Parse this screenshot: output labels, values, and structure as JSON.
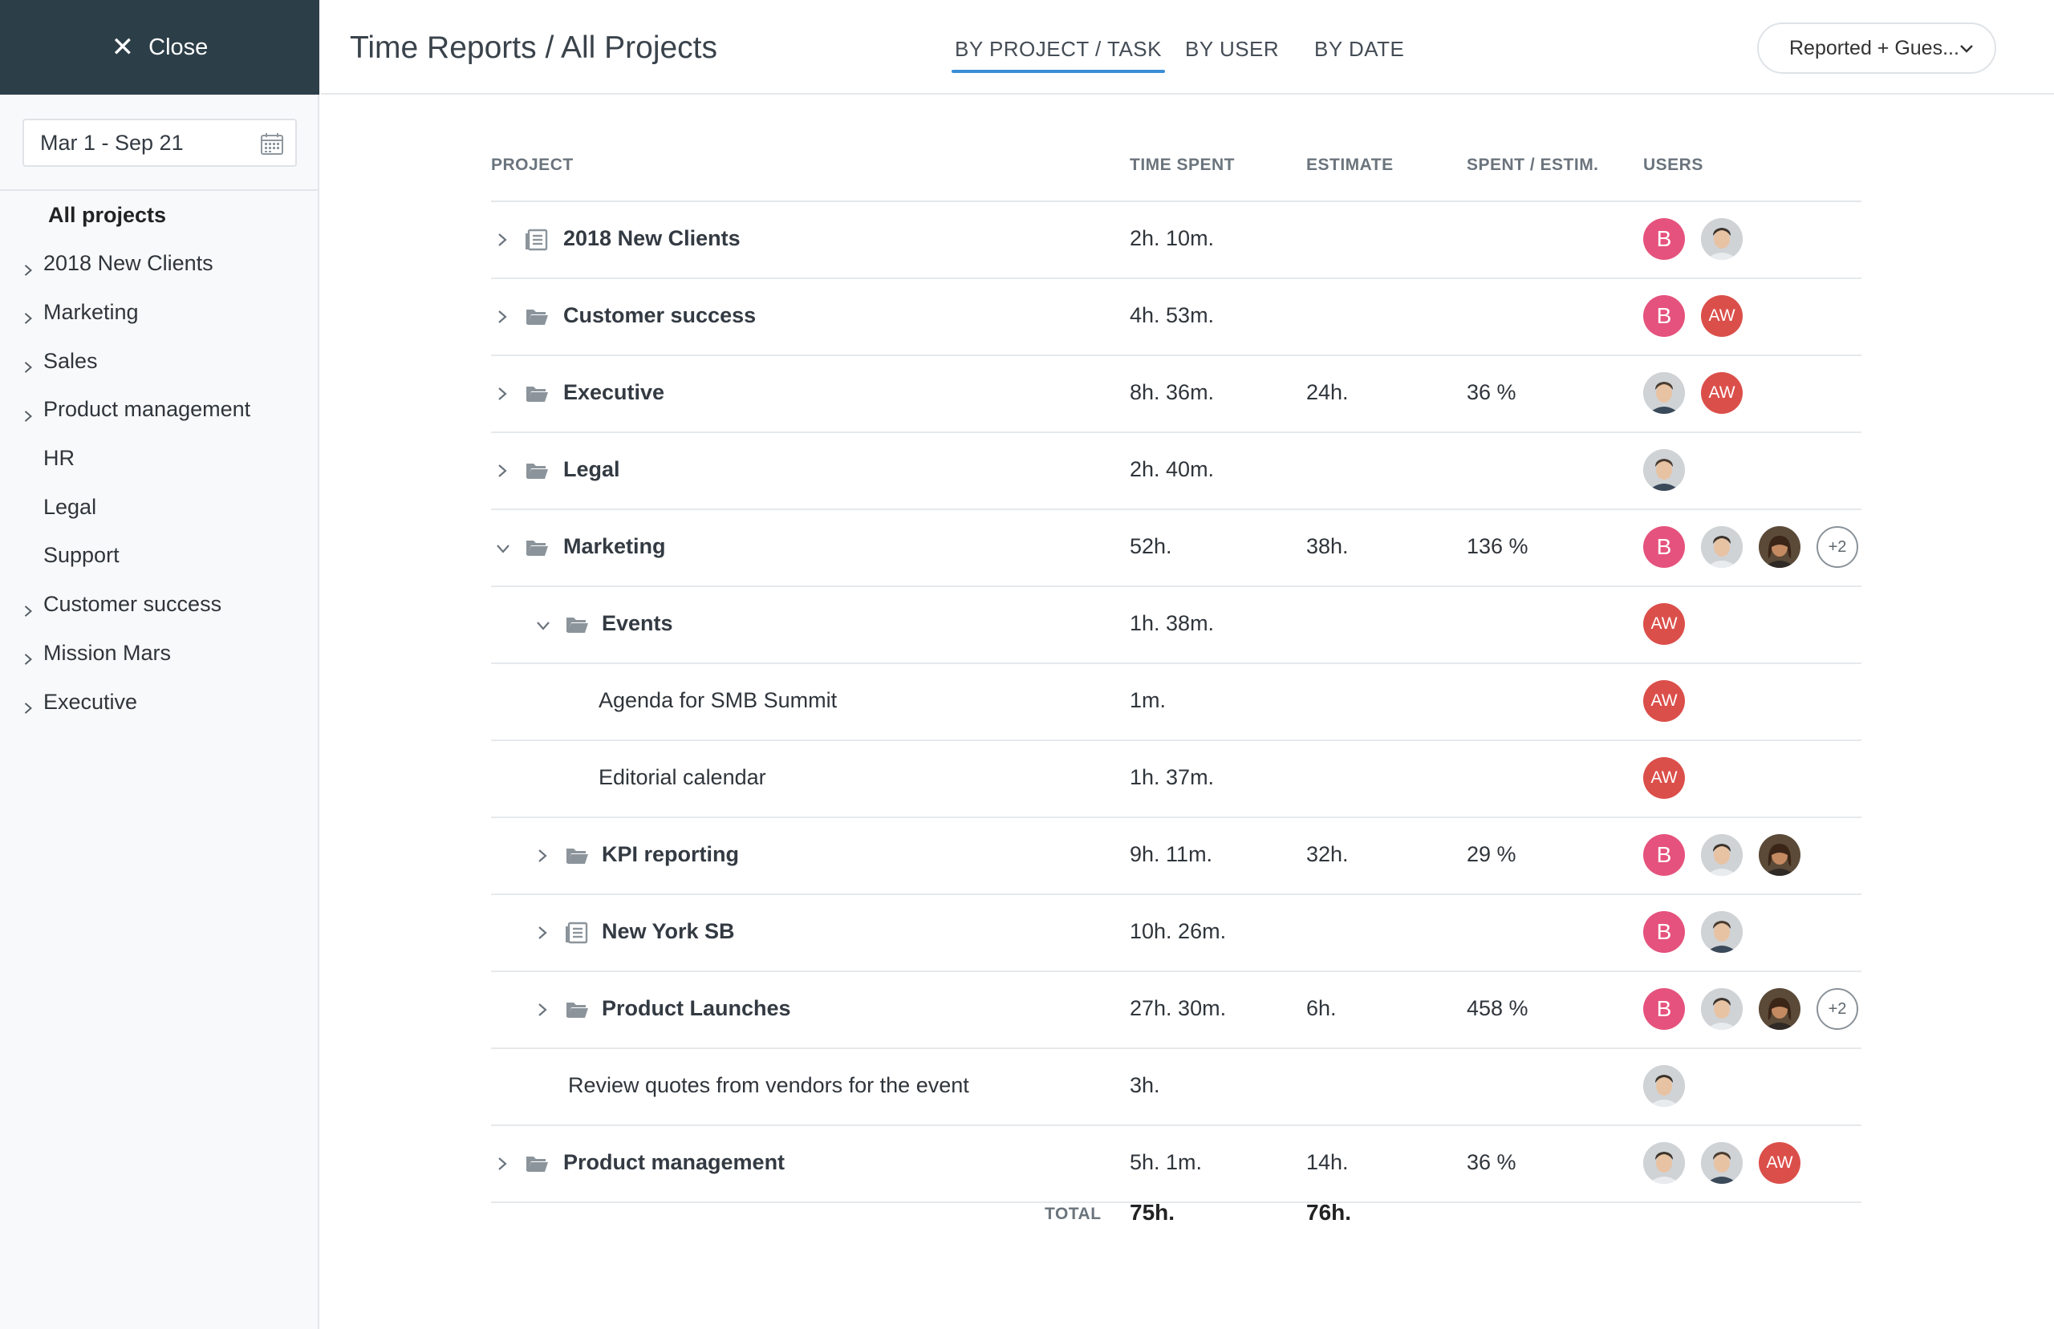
{
  "sidebar": {
    "close_label": "Close",
    "date_range": "Mar 1 - Sep 21",
    "items": [
      {
        "label": "All projects",
        "expandable": false
      },
      {
        "label": "2018 New Clients",
        "expandable": true
      },
      {
        "label": "Marketing",
        "expandable": true
      },
      {
        "label": "Sales",
        "expandable": true
      },
      {
        "label": "Product management",
        "expandable": true
      },
      {
        "label": "HR",
        "expandable": false
      },
      {
        "label": "Legal",
        "expandable": false
      },
      {
        "label": "Support",
        "expandable": false
      },
      {
        "label": "Customer success",
        "expandable": true
      },
      {
        "label": "Mission Mars",
        "expandable": true
      },
      {
        "label": "Executive",
        "expandable": true
      }
    ]
  },
  "header": {
    "title": "Time Reports / All Projects",
    "tabs": [
      {
        "label": "BY PROJECT / TASK",
        "active": true
      },
      {
        "label": "BY USER",
        "active": false
      },
      {
        "label": "BY DATE",
        "active": false
      }
    ],
    "filter_label": "Reported + Gues..."
  },
  "table": {
    "columns": [
      "PROJECT",
      "TIME SPENT",
      "ESTIMATE",
      "SPENT / ESTIM.",
      "USERS"
    ],
    "rows": [
      {
        "name": "2018 New Clients",
        "level": 0,
        "expander": "collapsed",
        "icon": "list-icon",
        "bold": true,
        "time": "2h. 10m.",
        "estimate": "",
        "ratio": "",
        "users": [
          "B",
          "photo-man-1"
        ]
      },
      {
        "name": "Customer success",
        "level": 0,
        "expander": "collapsed",
        "icon": "folder-icon",
        "bold": true,
        "time": "4h. 53m.",
        "estimate": "",
        "ratio": "",
        "users": [
          "B",
          "AW"
        ]
      },
      {
        "name": "Executive",
        "level": 0,
        "expander": "collapsed",
        "icon": "folder-icon",
        "bold": true,
        "time": "8h. 36m.",
        "estimate": "24h.",
        "ratio": "36 %",
        "users": [
          "photo-man-2",
          "AW"
        ]
      },
      {
        "name": "Legal",
        "level": 0,
        "expander": "collapsed",
        "icon": "folder-icon",
        "bold": true,
        "time": "2h. 40m.",
        "estimate": "",
        "ratio": "",
        "users": [
          "photo-man-2"
        ]
      },
      {
        "name": "Marketing",
        "level": 0,
        "expander": "expanded",
        "icon": "folder-icon",
        "bold": true,
        "time": "52h.",
        "estimate": "38h.",
        "ratio": "136 %",
        "users": [
          "B",
          "photo-man-1",
          "photo-woman",
          "+2"
        ]
      },
      {
        "name": "Events",
        "level": 1,
        "expander": "expanded",
        "icon": "folder-icon",
        "bold": true,
        "time": "1h. 38m.",
        "estimate": "",
        "ratio": "",
        "users": [
          "AW"
        ]
      },
      {
        "name": "Agenda for SMB Summit",
        "level": 2,
        "expander": "none",
        "icon": "",
        "bold": false,
        "time": "1m.",
        "estimate": "",
        "ratio": "",
        "users": [
          "AW"
        ]
      },
      {
        "name": "Editorial calendar",
        "level": 2,
        "expander": "none",
        "icon": "",
        "bold": false,
        "time": "1h. 37m.",
        "estimate": "",
        "ratio": "",
        "users": [
          "AW"
        ]
      },
      {
        "name": "KPI reporting",
        "level": 1,
        "expander": "collapsed",
        "icon": "folder-icon",
        "bold": true,
        "time": "9h. 11m.",
        "estimate": "32h.",
        "ratio": "29 %",
        "users": [
          "B",
          "photo-man-1",
          "photo-woman"
        ]
      },
      {
        "name": "New York SB",
        "level": 1,
        "expander": "collapsed",
        "icon": "list-icon",
        "bold": true,
        "time": "10h. 26m.",
        "estimate": "",
        "ratio": "",
        "users": [
          "B",
          "photo-man-2"
        ]
      },
      {
        "name": "Product Launches",
        "level": 1,
        "expander": "collapsed",
        "icon": "folder-icon",
        "bold": true,
        "time": "27h. 30m.",
        "estimate": "6h.",
        "ratio": "458 %",
        "users": [
          "B",
          "photo-man-1",
          "photo-woman",
          "+2"
        ]
      },
      {
        "name": "Review quotes from vendors for the event",
        "level": 1.5,
        "expander": "none",
        "icon": "",
        "bold": false,
        "time": "3h.",
        "estimate": "",
        "ratio": "",
        "users": [
          "photo-man-1"
        ]
      },
      {
        "name": "Product management",
        "level": 0,
        "expander": "collapsed",
        "icon": "folder-icon",
        "bold": true,
        "time": "5h. 1m.",
        "estimate": "14h.",
        "ratio": "36 %",
        "users": [
          "photo-man-1",
          "photo-man-2",
          "AW"
        ]
      }
    ],
    "total": {
      "label": "TOTAL",
      "time": "75h.",
      "estimate": "76h."
    }
  },
  "colors": {
    "sidebar_dark": "#2c3e48",
    "accent": "#3b8ed6",
    "avatar_b": "#e5527d",
    "avatar_aw": "#db4f4a"
  }
}
